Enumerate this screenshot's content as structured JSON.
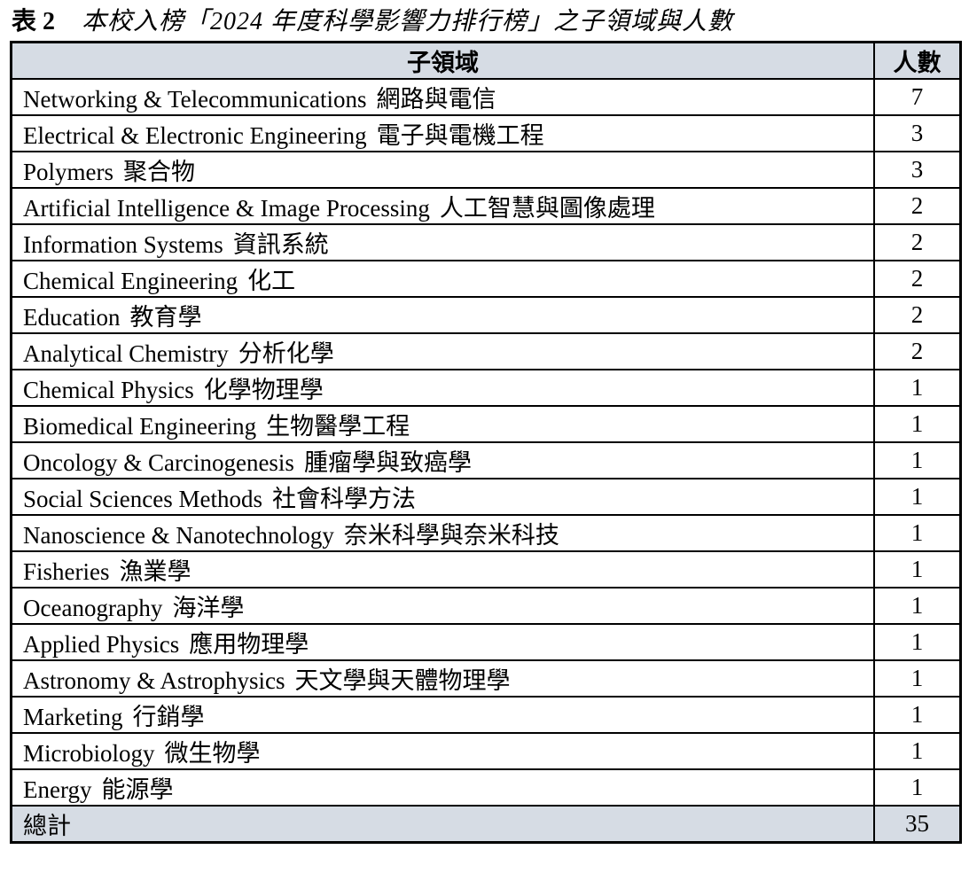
{
  "caption": {
    "label": "表 2",
    "text": "本校入榜「2024 年度科學影響力排行榜」之子領域與人數"
  },
  "table": {
    "headers": [
      "子領域",
      "人數"
    ],
    "rows": [
      {
        "en": "Networking & Telecommunications",
        "zh": "網路與電信",
        "count": 7
      },
      {
        "en": "Electrical & Electronic Engineering",
        "zh": "電子與電機工程",
        "count": 3
      },
      {
        "en": "Polymers",
        "zh": "聚合物",
        "count": 3
      },
      {
        "en": "Artificial Intelligence & Image Processing",
        "zh": "人工智慧與圖像處理",
        "count": 2
      },
      {
        "en": "Information Systems",
        "zh": "資訊系統",
        "count": 2
      },
      {
        "en": "Chemical Engineering",
        "zh": "化工",
        "count": 2
      },
      {
        "en": "Education",
        "zh": "教育學",
        "count": 2
      },
      {
        "en": "Analytical Chemistry",
        "zh": "分析化學",
        "count": 2
      },
      {
        "en": "Chemical Physics",
        "zh": "化學物理學",
        "count": 1
      },
      {
        "en": "Biomedical Engineering",
        "zh": "生物醫學工程",
        "count": 1
      },
      {
        "en": "Oncology & Carcinogenesis",
        "zh": "腫瘤學與致癌學",
        "count": 1
      },
      {
        "en": "Social Sciences Methods",
        "zh": "社會科學方法",
        "count": 1
      },
      {
        "en": "Nanoscience & Nanotechnology",
        "zh": "奈米科學與奈米科技",
        "count": 1
      },
      {
        "en": "Fisheries",
        "zh": "漁業學",
        "count": 1
      },
      {
        "en": "Oceanography",
        "zh": "海洋學",
        "count": 1
      },
      {
        "en": "Applied Physics",
        "zh": "應用物理學",
        "count": 1
      },
      {
        "en": "Astronomy & Astrophysics",
        "zh": "天文學與天體物理學",
        "count": 1
      },
      {
        "en": "Marketing",
        "zh": "行銷學",
        "count": 1
      },
      {
        "en": "Microbiology",
        "zh": "微生物學",
        "count": 1
      },
      {
        "en": "Energy",
        "zh": "能源學",
        "count": 1
      }
    ],
    "total": {
      "label": "總計",
      "count": 35
    }
  },
  "colors": {
    "header_bg": "#d6dce4",
    "border": "#000000",
    "page_bg": "#ffffff"
  }
}
